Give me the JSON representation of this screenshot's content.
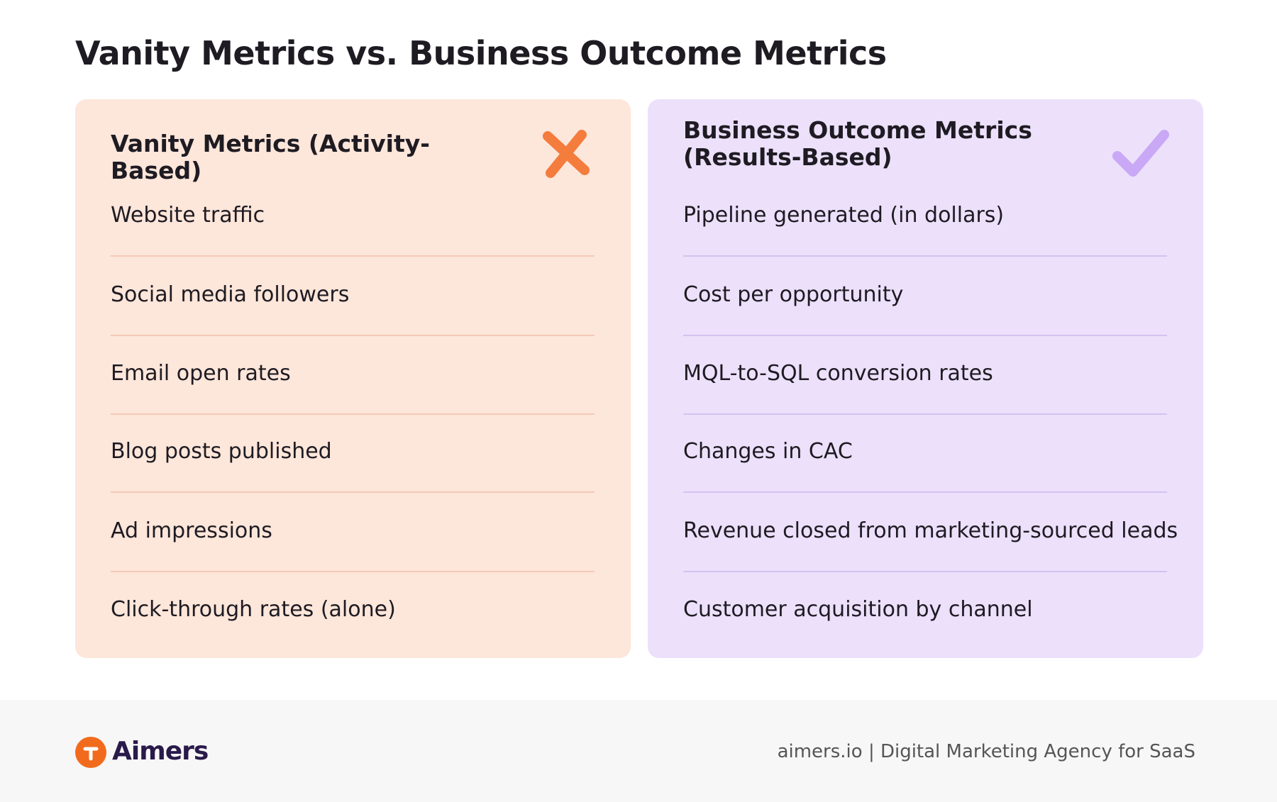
{
  "header": {
    "title": "Vanity Metrics vs. Business Outcome Metrics"
  },
  "columns": [
    {
      "title": "Vanity Metrics (Activity-Based)",
      "items": [
        "Website traffic",
        "Social media followers",
        "Email open rates",
        "Blog posts published",
        "Ad impressions",
        "Click-through rates (alone)"
      ]
    },
    {
      "title": "Business Outcome Metrics (Results-Based)",
      "items": [
        "Pipeline generated (in dollars)",
        "Cost per opportunity",
        "MQL-to-SQL conversion rates",
        "Changes in CAC",
        "Revenue closed from marketing-sourced leads",
        "Customer acquisition by channel"
      ]
    }
  ],
  "footer": {
    "brand": "Aimers",
    "tagline": "aimers.io | Digital Marketing Agency for SaaS"
  }
}
